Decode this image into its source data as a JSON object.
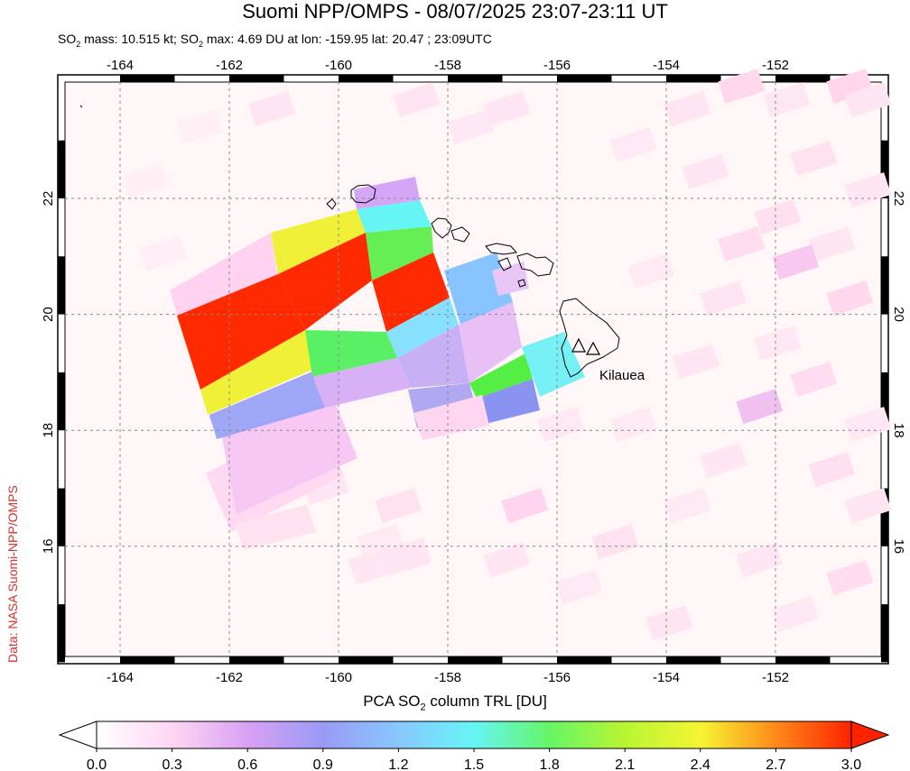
{
  "header": {
    "title": "Suomi NPP/OMPS - 08/07/2025 23:07-23:11 UT",
    "subtitle_pre": "SO",
    "subtitle_sub": "2",
    "subtitle_mid": " mass: 10.515 kt; SO",
    "subtitle_sub2": "2",
    "subtitle_post": " max: 4.69 DU at lon: -159.95 lat: 20.47 ; 23:09UTC"
  },
  "credit": "Data: NASA Suomi-NPP/OMPS",
  "volcano_label": "Kilauea",
  "map": {
    "lon_ticks": [
      "-164",
      "-162",
      "-160",
      "-158",
      "-156",
      "-154",
      "-152"
    ],
    "lat_ticks": [
      "22",
      "20",
      "18",
      "16"
    ],
    "lon_range": [
      -165.1,
      -150.1
    ],
    "lat_range": [
      14,
      24
    ]
  },
  "colorbar": {
    "label_pre": "PCA SO",
    "label_sub": "2",
    "label_post": " column TRL [DU]",
    "ticks": [
      "0.0",
      "0.3",
      "0.6",
      "0.9",
      "1.2",
      "1.5",
      "1.8",
      "2.1",
      "2.4",
      "2.7",
      "3.0"
    ],
    "colors": [
      "#ffffff",
      "#ffd6f4",
      "#d9a0f5",
      "#9a9af5",
      "#88c8ff",
      "#66f5f5",
      "#66f566",
      "#b8f533",
      "#f5f533",
      "#ff8a1a",
      "#ff2200"
    ]
  }
}
